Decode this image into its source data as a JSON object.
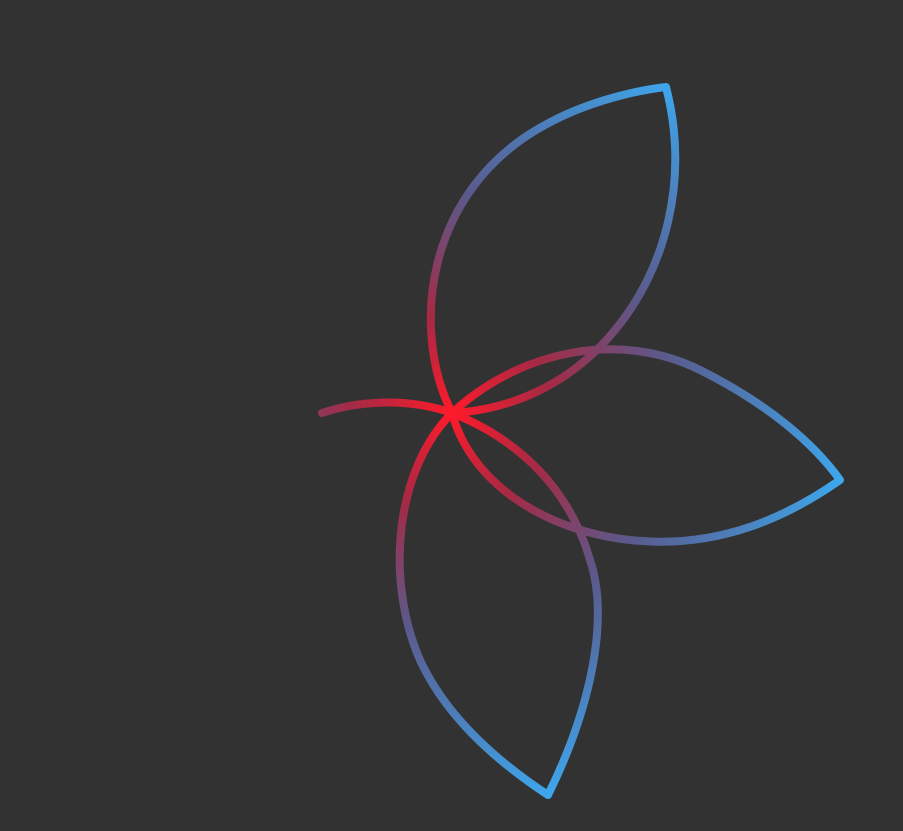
{
  "colors": {
    "background": "#323232",
    "center_red": "#ff1a2a",
    "tip_blue": "#3da9f0",
    "stem_red": "#b8283c"
  },
  "figure": {
    "description_icon": "three-petal-flower-outline-icon",
    "petal_count": 3
  }
}
